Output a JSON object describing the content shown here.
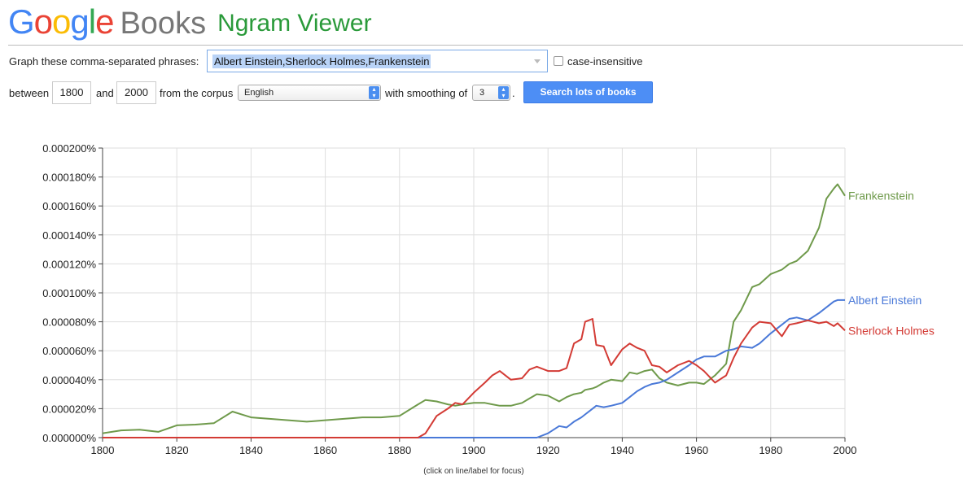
{
  "header": {
    "logo_google": [
      "G",
      "o",
      "o",
      "g",
      "l",
      "e"
    ],
    "logo_colors": [
      "#4285f4",
      "#ea4335",
      "#fbbc05",
      "#4285f4",
      "#34a853",
      "#ea4335"
    ],
    "logo_books": "Books",
    "app_title": "Ngram Viewer"
  },
  "form": {
    "phrases_label": "Graph these comma-separated phrases:",
    "phrases_value": "Albert Einstein,Sherlock Holmes,Frankenstein",
    "case_insensitive_label": "case-insensitive",
    "between_label": "between",
    "year_start": "1800",
    "and_label": "and",
    "year_end": "2000",
    "corpus_label": "from the corpus",
    "corpus_value": "English",
    "smoothing_label": "with smoothing of",
    "smoothing_value": "3",
    "period": ".",
    "search_button": "Search lots of books"
  },
  "chart_footer": "(click on line/label for focus)",
  "chart_data": {
    "type": "line",
    "x": [
      1800,
      1805,
      1810,
      1815,
      1820,
      1825,
      1830,
      1835,
      1840,
      1845,
      1850,
      1855,
      1860,
      1865,
      1870,
      1875,
      1880,
      1885,
      1887,
      1890,
      1893,
      1895,
      1897,
      1900,
      1903,
      1905,
      1907,
      1910,
      1913,
      1915,
      1917,
      1920,
      1923,
      1925,
      1927,
      1929,
      1930,
      1932,
      1933,
      1935,
      1937,
      1940,
      1942,
      1944,
      1946,
      1948,
      1950,
      1952,
      1955,
      1958,
      1960,
      1962,
      1965,
      1968,
      1970,
      1972,
      1975,
      1977,
      1980,
      1983,
      1985,
      1987,
      1990,
      1993,
      1995,
      1997,
      1998,
      2000
    ],
    "ylim": [
      0,
      0.0002
    ],
    "xlim": [
      1800,
      2000
    ],
    "y_ticks": [
      "0.000000%",
      "0.000020%",
      "0.000040%",
      "0.000060%",
      "0.000080%",
      "0.000100%",
      "0.000120%",
      "0.000140%",
      "0.000160%",
      "0.000180%",
      "0.000200%"
    ],
    "x_ticks": [
      "1800",
      "1820",
      "1840",
      "1860",
      "1880",
      "1900",
      "1920",
      "1940",
      "1960",
      "1980",
      "2000"
    ],
    "grid": true,
    "series": [
      {
        "name": "Frankenstein",
        "color": "#6f9a4b",
        "values": [
          3e-06,
          5e-06,
          5.5e-06,
          4e-06,
          8.5e-06,
          9e-06,
          1e-05,
          1.8e-05,
          1.4e-05,
          1.3e-05,
          1.2e-05,
          1.1e-05,
          1.2e-05,
          1.3e-05,
          1.4e-05,
          1.4e-05,
          1.5e-05,
          2.3e-05,
          2.6e-05,
          2.5e-05,
          2.3e-05,
          2.2e-05,
          2.3e-05,
          2.4e-05,
          2.4e-05,
          2.3e-05,
          2.2e-05,
          2.2e-05,
          2.4e-05,
          2.7e-05,
          3e-05,
          2.9e-05,
          2.5e-05,
          2.8e-05,
          3e-05,
          3.1e-05,
          3.3e-05,
          3.4e-05,
          3.5e-05,
          3.8e-05,
          4e-05,
          3.9e-05,
          4.5e-05,
          4.4e-05,
          4.6e-05,
          4.7e-05,
          4.1e-05,
          3.8e-05,
          3.6e-05,
          3.8e-05,
          3.8e-05,
          3.7e-05,
          4.3e-05,
          5.1e-05,
          8e-05,
          8.8e-05,
          0.000104,
          0.000106,
          0.000113,
          0.000116,
          0.00012,
          0.000122,
          0.000129,
          0.000145,
          0.000165,
          0.000172,
          0.000175,
          0.000167
        ]
      },
      {
        "name": "Albert Einstein",
        "color": "#4a79d8",
        "values": [
          0,
          0,
          0,
          0,
          0,
          0,
          0,
          0,
          0,
          0,
          0,
          0,
          0,
          0,
          0,
          0,
          0,
          0,
          0,
          0,
          0,
          0,
          0,
          0,
          0,
          0,
          0,
          0,
          0,
          0,
          0,
          3e-06,
          8e-06,
          7e-06,
          1.1e-05,
          1.4e-05,
          1.6e-05,
          2e-05,
          2.2e-05,
          2.1e-05,
          2.2e-05,
          2.4e-05,
          2.8e-05,
          3.2e-05,
          3.5e-05,
          3.7e-05,
          3.8e-05,
          4e-05,
          4.5e-05,
          5e-05,
          5.4e-05,
          5.6e-05,
          5.6e-05,
          6e-05,
          6.1e-05,
          6.3e-05,
          6.2e-05,
          6.5e-05,
          7.2e-05,
          7.8e-05,
          8.2e-05,
          8.3e-05,
          8.1e-05,
          8.6e-05,
          9e-05,
          9.4e-05,
          9.5e-05,
          9.5e-05
        ]
      },
      {
        "name": "Sherlock Holmes",
        "color": "#d33b35",
        "values": [
          0,
          0,
          0,
          0,
          0,
          0,
          0,
          0,
          0,
          0,
          0,
          0,
          0,
          0,
          0,
          0,
          0,
          0,
          3e-06,
          1.5e-05,
          2e-05,
          2.4e-05,
          2.3e-05,
          3.1e-05,
          3.8e-05,
          4.3e-05,
          4.6e-05,
          4e-05,
          4.1e-05,
          4.7e-05,
          4.9e-05,
          4.6e-05,
          4.6e-05,
          4.8e-05,
          6.5e-05,
          6.8e-05,
          8e-05,
          8.2e-05,
          6.4e-05,
          6.3e-05,
          5e-05,
          6.1e-05,
          6.5e-05,
          6.2e-05,
          6e-05,
          5e-05,
          4.9e-05,
          4.5e-05,
          5e-05,
          5.3e-05,
          5e-05,
          4.6e-05,
          3.8e-05,
          4.3e-05,
          5.5e-05,
          6.5e-05,
          7.6e-05,
          8e-05,
          7.9e-05,
          7e-05,
          7.8e-05,
          7.9e-05,
          8.1e-05,
          7.9e-05,
          8e-05,
          7.7e-05,
          7.9e-05,
          7.4e-05
        ]
      }
    ]
  }
}
